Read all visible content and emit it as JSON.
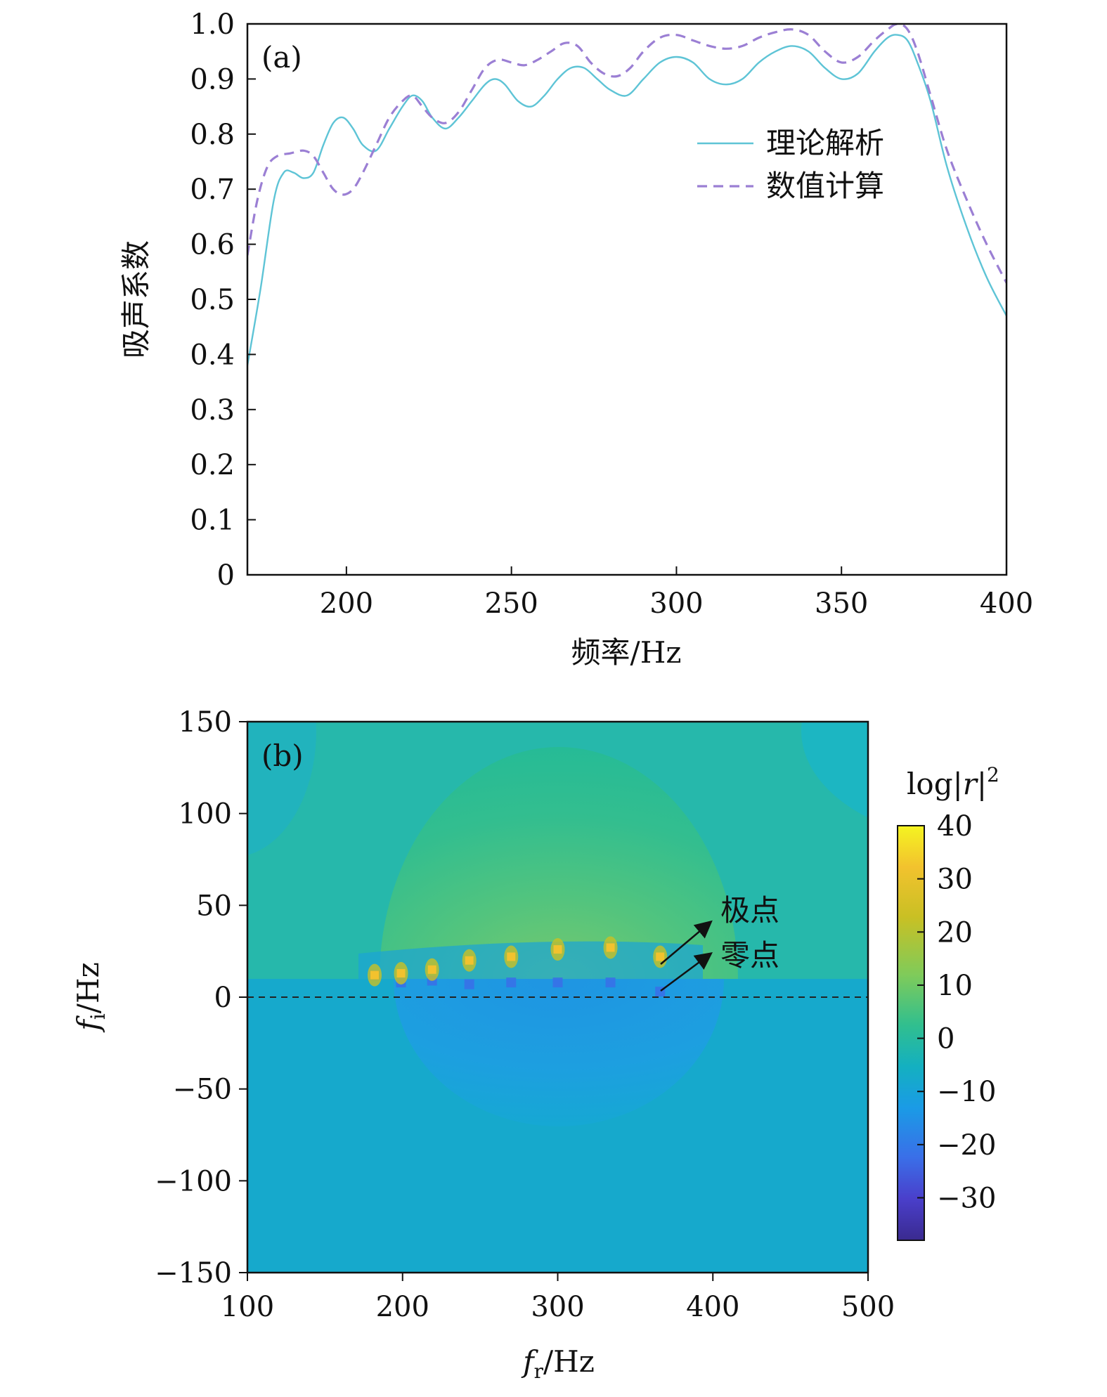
{
  "chart_data": [
    {
      "type": "line",
      "panel_label": "(a)",
      "xlabel": "频率/Hz",
      "ylabel": "吸声系数",
      "xlim": [
        170,
        400
      ],
      "ylim": [
        0,
        1.0
      ],
      "xticks": [
        200,
        250,
        300,
        350,
        400
      ],
      "xtick_labels": [
        "200",
        "250",
        "300",
        "350",
        "400"
      ],
      "yticks": [
        0,
        0.1,
        0.2,
        0.3,
        0.4,
        0.5,
        0.6,
        0.7,
        0.8,
        0.9,
        1.0
      ],
      "ytick_labels": [
        "0",
        "0.1",
        "0.2",
        "0.3",
        "0.4",
        "0.5",
        "0.6",
        "0.7",
        "0.8",
        "0.9",
        "1.0"
      ],
      "legend": "upper-right",
      "series": [
        {
          "name": "理论解析",
          "color": "#5ec4d6",
          "style": "solid",
          "x": [
            170,
            174,
            178,
            181,
            184,
            187,
            190,
            193,
            196,
            199,
            202,
            205,
            209,
            213,
            217,
            220,
            223,
            226,
            230,
            234,
            238,
            242,
            245,
            248,
            252,
            256,
            260,
            264,
            268,
            272,
            276,
            280,
            285,
            290,
            295,
            300,
            305,
            310,
            315,
            320,
            325,
            330,
            335,
            340,
            345,
            350,
            355,
            360,
            364,
            367,
            370,
            373,
            377,
            382,
            388,
            394,
            400
          ],
          "y": [
            0.38,
            0.52,
            0.68,
            0.73,
            0.73,
            0.72,
            0.73,
            0.78,
            0.82,
            0.83,
            0.81,
            0.78,
            0.77,
            0.81,
            0.85,
            0.87,
            0.86,
            0.83,
            0.81,
            0.83,
            0.86,
            0.89,
            0.9,
            0.89,
            0.86,
            0.85,
            0.87,
            0.9,
            0.92,
            0.92,
            0.9,
            0.88,
            0.87,
            0.9,
            0.93,
            0.94,
            0.93,
            0.9,
            0.89,
            0.9,
            0.93,
            0.95,
            0.96,
            0.95,
            0.92,
            0.9,
            0.91,
            0.95,
            0.975,
            0.98,
            0.97,
            0.93,
            0.86,
            0.74,
            0.63,
            0.54,
            0.47
          ]
        },
        {
          "name": "数值计算",
          "color": "#9b7fd4",
          "style": "dashed",
          "x": [
            170,
            173,
            176,
            179,
            183,
            187,
            190,
            193,
            196,
            199,
            202,
            205,
            209,
            213,
            217,
            220,
            223,
            226,
            230,
            234,
            238,
            242,
            246,
            250,
            254,
            258,
            262,
            266,
            270,
            274,
            278,
            282,
            286,
            290,
            295,
            300,
            305,
            310,
            315,
            320,
            325,
            330,
            335,
            340,
            345,
            350,
            355,
            360,
            364,
            367,
            370,
            373,
            377,
            382,
            388,
            394,
            400
          ],
          "y": [
            0.58,
            0.68,
            0.74,
            0.76,
            0.765,
            0.77,
            0.76,
            0.73,
            0.7,
            0.69,
            0.7,
            0.73,
            0.78,
            0.83,
            0.86,
            0.87,
            0.85,
            0.83,
            0.82,
            0.84,
            0.88,
            0.92,
            0.935,
            0.93,
            0.925,
            0.935,
            0.95,
            0.965,
            0.96,
            0.93,
            0.91,
            0.905,
            0.92,
            0.95,
            0.975,
            0.98,
            0.97,
            0.96,
            0.955,
            0.96,
            0.975,
            0.985,
            0.99,
            0.98,
            0.95,
            0.93,
            0.94,
            0.97,
            0.99,
            1.0,
            0.99,
            0.95,
            0.87,
            0.77,
            0.68,
            0.6,
            0.53
          ]
        }
      ]
    },
    {
      "type": "heatmap",
      "panel_label": "(b)",
      "xlabel_main": "f",
      "xlabel_sub": "r",
      "xlabel_unit": "/Hz",
      "ylabel_main": "f",
      "ylabel_sub": "i",
      "ylabel_unit": "/Hz",
      "xlim": [
        100,
        500
      ],
      "ylim": [
        -150,
        150
      ],
      "xticks": [
        100,
        200,
        300,
        400,
        500
      ],
      "xtick_labels": [
        "100",
        "200",
        "300",
        "400",
        "500"
      ],
      "yticks": [
        150,
        100,
        50,
        0,
        -50,
        -100,
        -150
      ],
      "ytick_labels": [
        "150",
        "100",
        "50",
        "0",
        "−50",
        "−100",
        "−150"
      ],
      "reference_line_y": 0,
      "colorbar": {
        "label_main": "log|",
        "label_var": "r",
        "label_end": "|",
        "label_sup": "2",
        "range": [
          -38,
          40
        ],
        "ticks": [
          40,
          30,
          20,
          10,
          0,
          -10,
          -20,
          -30
        ],
        "tick_labels": [
          "40",
          "30",
          "20",
          "10",
          "0",
          "−10",
          "−20",
          "−30"
        ],
        "colors": [
          "#f5f421",
          "#f2c22e",
          "#c9c024",
          "#7fcb5a",
          "#31bf8e",
          "#14b0c0",
          "#1a9be6",
          "#3a6fe8",
          "#4a3fcb",
          "#3a2a8f"
        ]
      },
      "poles": {
        "x": [
          182,
          199,
          219,
          243,
          270,
          300,
          334,
          366
        ],
        "y": [
          12,
          13,
          15,
          20,
          22,
          26,
          27,
          22
        ],
        "value": 28
      },
      "zeros": {
        "x": [
          182,
          199,
          219,
          243,
          270,
          300,
          334,
          366
        ],
        "y": [
          12,
          8,
          9,
          7,
          8,
          8,
          8,
          3
        ],
        "value": -22
      },
      "annotations": [
        {
          "text": "极点",
          "points_to": [
            365,
            25
          ]
        },
        {
          "text": "零点",
          "points_to": [
            365,
            3
          ]
        }
      ]
    }
  ]
}
